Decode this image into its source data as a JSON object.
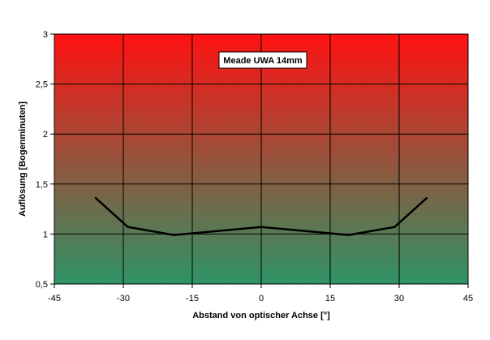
{
  "chart_data": {
    "type": "line",
    "title": "",
    "xlabel": "Abstand von optischer Achse [°]",
    "ylabel": "Auflösung [Bogenminuten]",
    "xlim": [
      -45,
      45
    ],
    "ylim": [
      0.5,
      3
    ],
    "xticks": [
      -45,
      -30,
      -15,
      0,
      15,
      30,
      45
    ],
    "xtick_labels": [
      "-45",
      "-30",
      "-15",
      "0",
      "15",
      "30",
      "45"
    ],
    "yticks": [
      0.5,
      1,
      1.5,
      2,
      2.5,
      3
    ],
    "ytick_labels": [
      "0,5",
      "1",
      "1,5",
      "2",
      "2,5",
      "3"
    ],
    "grid": true,
    "legend_position": "top-center",
    "background_gradient": {
      "top": "#ff1111",
      "bottom": "#2e9466"
    },
    "series": [
      {
        "name": "Meade UWA 14mm",
        "color": "#000000",
        "x": [
          -36,
          -29,
          -19,
          0,
          19,
          29,
          36
        ],
        "y": [
          1.36,
          1.07,
          0.99,
          1.07,
          0.99,
          1.07,
          1.36
        ]
      }
    ]
  }
}
